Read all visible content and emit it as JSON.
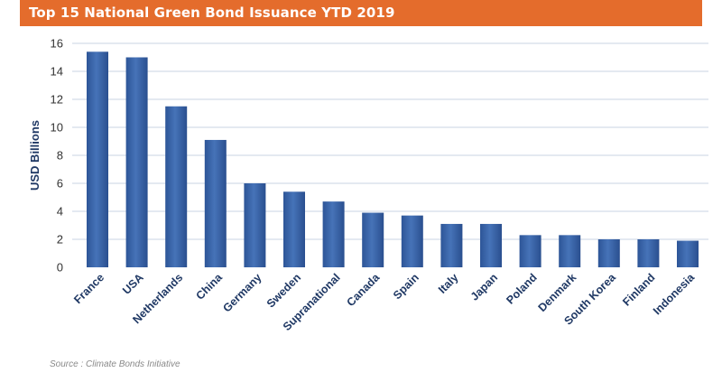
{
  "title": "Top 15 National Green Bond Issuance YTD 2019",
  "source": "Source : Climate Bonds Initiative",
  "chart_data": {
    "type": "bar",
    "categories": [
      "France",
      "USA",
      "Netherlands",
      "China",
      "Germany",
      "Sweden",
      "Supranational",
      "Canada",
      "Spain",
      "Italy",
      "Japan",
      "Poland",
      "Denmark",
      "South Korea",
      "Finland",
      "Indonesia"
    ],
    "values": [
      15.4,
      15.0,
      11.5,
      9.1,
      6.0,
      5.4,
      4.7,
      3.9,
      3.7,
      3.1,
      3.1,
      2.3,
      2.3,
      2.0,
      2.0,
      1.9
    ],
    "ylabel": "USD Billions",
    "xlabel": "",
    "ylim": [
      0,
      16
    ],
    "yticks": [
      0,
      2,
      4,
      6,
      8,
      10,
      12,
      14,
      16
    ],
    "grid": true,
    "legend": "none",
    "colors": {
      "bar": "#3a64a8",
      "bar_dark": "#1f4787",
      "tick_label": "#1f3864",
      "grid": "#c9d3e3",
      "title_bar": "#e46c2c"
    }
  }
}
